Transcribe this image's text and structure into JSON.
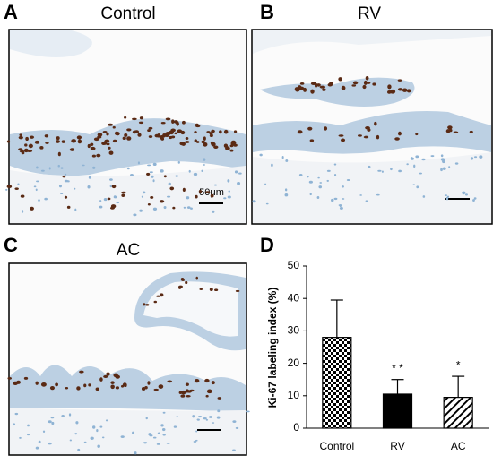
{
  "panels": [
    {
      "label": "A",
      "title": "Control",
      "scale_bar": "50μm"
    },
    {
      "label": "B",
      "title": "RV"
    },
    {
      "label": "C",
      "title": "AC"
    }
  ],
  "chart_data": {
    "type": "bar",
    "panel_label": "D",
    "y_label": "Ki-67 labeling index (%)",
    "categories": [
      "Control",
      "RV",
      "AC"
    ],
    "values": [
      28,
      10.5,
      9.5
    ],
    "errors": [
      11.5,
      4.5,
      6.5
    ],
    "significance": [
      null,
      "* *",
      "*"
    ],
    "patterns": [
      "checker",
      "solid",
      "hatch"
    ],
    "color": "#000000",
    "ylim": [
      0,
      50
    ],
    "yticks": [
      0,
      10,
      20,
      30,
      40,
      50
    ]
  }
}
